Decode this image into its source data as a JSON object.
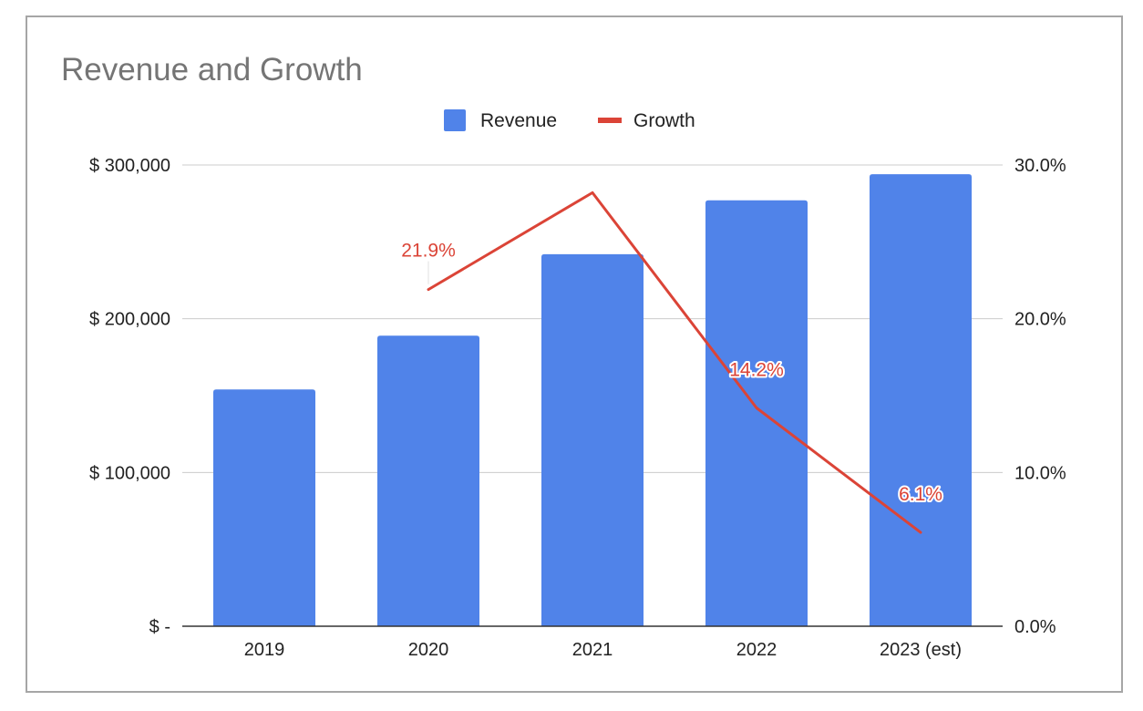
{
  "chart_data": {
    "type": "bar",
    "title": "Revenue and Growth",
    "categories": [
      "2019",
      "2020",
      "2021",
      "2022",
      "2023 (est)"
    ],
    "series": [
      {
        "name": "Revenue",
        "type": "bar",
        "axis": "left",
        "color": "#5083e9",
        "values": [
          154000,
          189000,
          242000,
          277000,
          294000
        ]
      },
      {
        "name": "Growth",
        "type": "line",
        "axis": "right",
        "color": "#db4437",
        "values": [
          null,
          21.9,
          28.2,
          14.2,
          6.1
        ],
        "labels": [
          null,
          "21.9%",
          null,
          "14.2%",
          "6.1%"
        ]
      }
    ],
    "y_left": {
      "ylim": [
        0,
        300000
      ],
      "ticks": [
        0,
        100000,
        200000,
        300000
      ],
      "tick_labels": [
        "$ -",
        "$ 100,000",
        "$ 200,000",
        "$ 300,000"
      ]
    },
    "y_right": {
      "ylim": [
        0,
        30
      ],
      "ticks": [
        0,
        10,
        20,
        30
      ],
      "tick_labels": [
        "0.0%",
        "10.0%",
        "20.0%",
        "30.0%"
      ]
    },
    "grid": true,
    "legend": "top-center",
    "xlabel": "",
    "ylabel": ""
  }
}
